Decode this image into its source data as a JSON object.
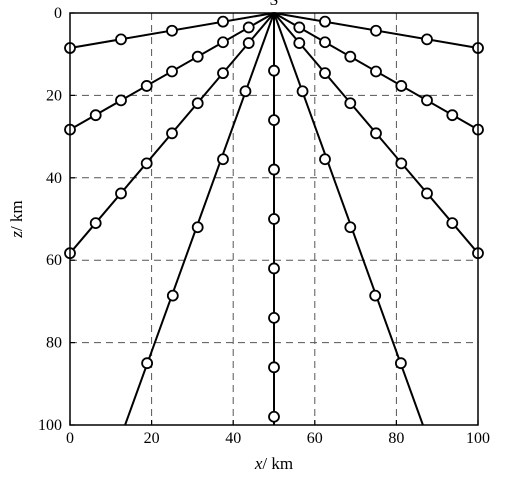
{
  "chart_data": {
    "type": "line",
    "title": "",
    "xlabel": {
      "var": "x",
      "unit": "/ km"
    },
    "ylabel": {
      "var": "z",
      "unit": "/ km"
    },
    "xlim": [
      0,
      100
    ],
    "ylim": [
      0,
      100
    ],
    "y_inverted": true,
    "x_ticks": [
      "0",
      "20",
      "40",
      "60",
      "80",
      "100"
    ],
    "y_ticks": [
      "0",
      "20",
      "40",
      "60",
      "80",
      "100"
    ],
    "grid": "dashed",
    "source": {
      "label": "S",
      "x": 50,
      "z": 0
    },
    "rays": [
      {
        "end": [
          0,
          8.5
        ],
        "markers": [
          [
            0,
            8.5
          ],
          [
            12.5,
            6.4
          ],
          [
            25,
            4.3
          ],
          [
            37.5,
            2.1
          ]
        ]
      },
      {
        "end": [
          0,
          28.3
        ],
        "markers": [
          [
            0,
            28.3
          ],
          [
            6.3,
            24.8
          ],
          [
            12.5,
            21.2
          ],
          [
            18.8,
            17.7
          ],
          [
            25,
            14.2
          ],
          [
            31.3,
            10.6
          ],
          [
            37.5,
            7.1
          ],
          [
            43.8,
            3.5
          ]
        ]
      },
      {
        "end": [
          0,
          58.3
        ],
        "markers": [
          [
            0,
            58.3
          ],
          [
            6.3,
            51
          ],
          [
            12.5,
            43.8
          ],
          [
            18.8,
            36.5
          ],
          [
            25,
            29.2
          ],
          [
            31.3,
            21.9
          ],
          [
            37.5,
            14.6
          ],
          [
            43.8,
            7.3
          ]
        ]
      },
      {
        "end": [
          13.5,
          100
        ],
        "markers": [
          [
            18.9,
            85
          ],
          [
            25.2,
            68.6
          ],
          [
            31.3,
            52
          ],
          [
            37.5,
            35.5
          ],
          [
            43,
            19
          ]
        ]
      },
      {
        "end": [
          50,
          100
        ],
        "markers": [
          [
            50,
            14
          ],
          [
            50,
            26
          ],
          [
            50,
            38
          ],
          [
            50,
            50
          ],
          [
            50,
            62
          ],
          [
            50,
            74
          ],
          [
            50,
            86
          ],
          [
            50,
            98
          ]
        ]
      },
      {
        "end": [
          86.5,
          100
        ],
        "markers": [
          [
            81.1,
            85
          ],
          [
            74.8,
            68.6
          ],
          [
            68.7,
            52
          ],
          [
            62.5,
            35.5
          ],
          [
            57,
            19
          ]
        ]
      },
      {
        "end": [
          100,
          58.3
        ],
        "markers": [
          [
            100,
            58.3
          ],
          [
            93.7,
            51
          ],
          [
            87.5,
            43.8
          ],
          [
            81.2,
            36.5
          ],
          [
            75,
            29.2
          ],
          [
            68.7,
            21.9
          ],
          [
            62.5,
            14.6
          ],
          [
            56.2,
            7.3
          ]
        ]
      },
      {
        "end": [
          100,
          28.3
        ],
        "markers": [
          [
            100,
            28.3
          ],
          [
            93.7,
            24.8
          ],
          [
            87.5,
            21.2
          ],
          [
            81.2,
            17.7
          ],
          [
            75,
            14.2
          ],
          [
            68.7,
            10.6
          ],
          [
            62.5,
            7.1
          ],
          [
            56.2,
            3.5
          ]
        ]
      },
      {
        "end": [
          100,
          8.5
        ],
        "markers": [
          [
            100,
            8.5
          ],
          [
            87.5,
            6.4
          ],
          [
            75,
            4.3
          ],
          [
            62.5,
            2.1
          ]
        ]
      }
    ]
  }
}
